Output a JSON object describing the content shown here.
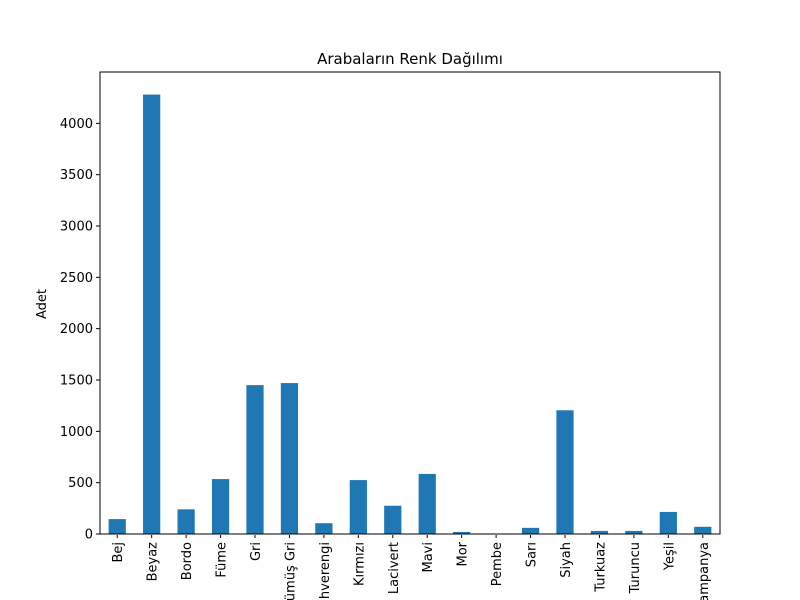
{
  "chart_data": {
    "type": "bar",
    "title": "Arabaların Renk Dağılımı",
    "xlabel": "",
    "ylabel": "Adet",
    "categories": [
      "Bej",
      "Beyaz",
      "Bordo",
      "Füme",
      "Gri",
      "Gümüş Gri",
      "Kahverengi",
      "Kırmızı",
      "Lacivert",
      "Mavi",
      "Mor",
      "Pembe",
      "Sarı",
      "Siyah",
      "Turkuaz",
      "Turuncu",
      "Yeşil",
      "Şampanya"
    ],
    "values": [
      145,
      4280,
      240,
      535,
      1450,
      1470,
      105,
      525,
      275,
      585,
      20,
      3,
      60,
      1205,
      30,
      30,
      215,
      70
    ],
    "ylim": [
      0,
      4500
    ],
    "yticks": [
      0,
      500,
      1000,
      1500,
      2000,
      2500,
      3000,
      3500,
      4000
    ],
    "bar_color": "#1f77b4",
    "grid": false,
    "legend": "none"
  }
}
